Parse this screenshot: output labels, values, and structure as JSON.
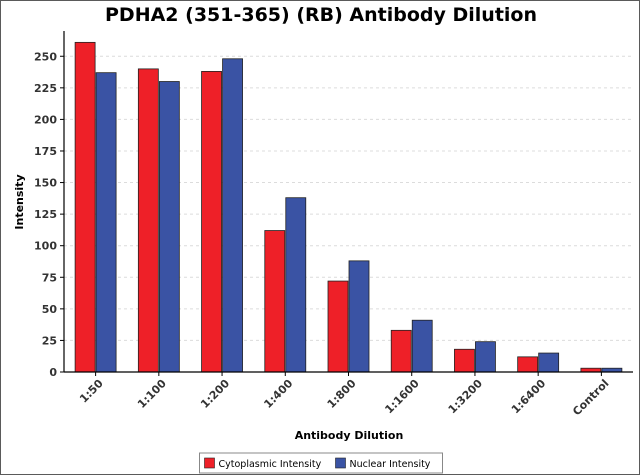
{
  "chart_data": {
    "type": "bar",
    "title": "PDHA2 (351-365) (RB) Antibody Dilution",
    "xlabel": "Antibody Dilution",
    "ylabel": "Intensity",
    "categories": [
      "1:50",
      "1:100",
      "1:200",
      "1:400",
      "1:800",
      "1:1600",
      "1:3200",
      "1:6400",
      "Control"
    ],
    "series": [
      {
        "name": "Cytoplasmic Intensity",
        "color": "#ee2028",
        "values": [
          261,
          240,
          238,
          112,
          72,
          33,
          18,
          12,
          3
        ]
      },
      {
        "name": "Nuclear Intensity",
        "color": "#3a53a4",
        "values": [
          237,
          230,
          248,
          138,
          88,
          41,
          24,
          15,
          3
        ]
      }
    ],
    "ylim": [
      0,
      270
    ],
    "yticks": [
      0,
      25,
      50,
      75,
      100,
      125,
      150,
      175,
      200,
      225,
      250
    ],
    "grid": true,
    "legend_position": "bottom"
  }
}
